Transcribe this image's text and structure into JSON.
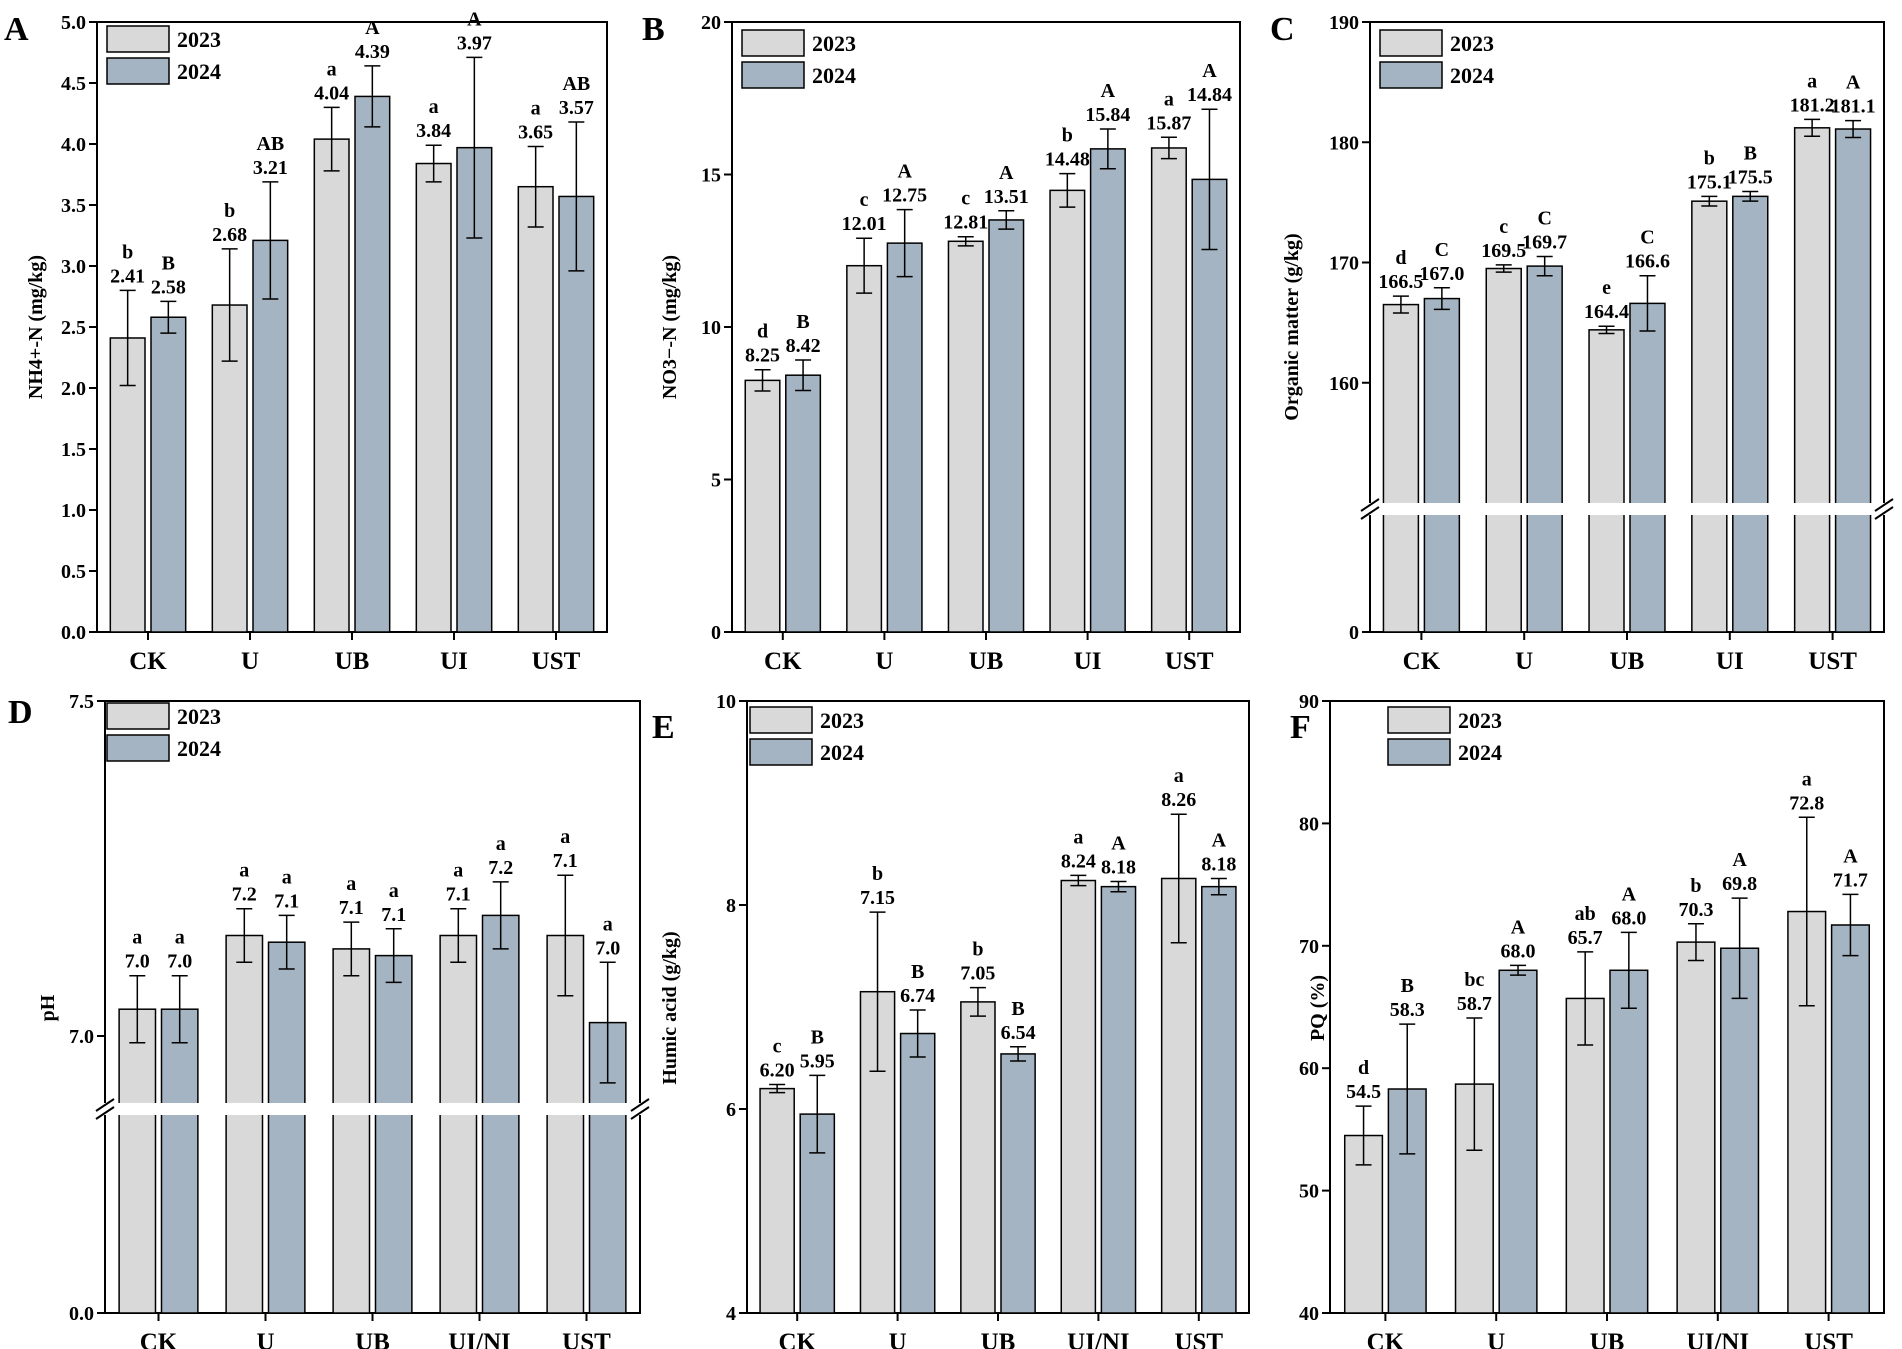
{
  "figure": {
    "colors": {
      "series_2023": "#d9d9d9",
      "series_2024": "#a5b4c2",
      "stroke": "#000000"
    }
  },
  "chart_data": [
    {
      "panel": "A",
      "type": "bar",
      "ylabel": "NH4+-N (mg/kg)",
      "ylim": [
        0,
        5.0
      ],
      "yticks": [
        "0.0",
        "0.5",
        "1.0",
        "1.5",
        "2.0",
        "2.5",
        "3.0",
        "3.5",
        "4.0",
        "4.5",
        "5.0"
      ],
      "ytick_values": [
        0,
        0.5,
        1,
        1.5,
        2,
        2.5,
        3,
        3.5,
        4,
        4.5,
        5
      ],
      "categories": [
        "CK",
        "U",
        "UB",
        "UI",
        "UST"
      ],
      "legend": [
        "2023",
        "2024"
      ],
      "series": [
        {
          "name": "2023",
          "values": [
            2.41,
            2.68,
            4.04,
            3.84,
            3.65
          ],
          "errors": [
            0.39,
            0.46,
            0.26,
            0.15,
            0.33
          ],
          "labels": [
            "2.41",
            "2.68",
            "4.04",
            "3.84",
            "3.65"
          ],
          "letters": [
            "b",
            "b",
            "a",
            "a",
            "a"
          ]
        },
        {
          "name": "2024",
          "values": [
            2.58,
            3.21,
            4.39,
            3.97,
            3.57
          ],
          "errors": [
            0.13,
            0.48,
            0.25,
            0.74,
            0.61
          ],
          "labels": [
            "2.58",
            "3.21",
            "4.39",
            "3.97",
            "3.57"
          ],
          "letters": [
            "B",
            "AB",
            "A",
            "A",
            "AB"
          ]
        }
      ]
    },
    {
      "panel": "B",
      "type": "bar",
      "ylabel": "NO3−-N (mg/kg)",
      "ylim": [
        0,
        20
      ],
      "yticks": [
        "0",
        "5",
        "10",
        "15",
        "20"
      ],
      "ytick_values": [
        0,
        5,
        10,
        15,
        20
      ],
      "categories": [
        "CK",
        "U",
        "UB",
        "UI",
        "UST"
      ],
      "legend": [
        "2023",
        "2024"
      ],
      "series": [
        {
          "name": "2023",
          "values": [
            8.25,
            12.01,
            12.81,
            14.48,
            15.87
          ],
          "errors": [
            0.35,
            0.9,
            0.15,
            0.55,
            0.35
          ],
          "labels": [
            "8.25",
            "12.01",
            "12.81",
            "14.48",
            "15.87"
          ],
          "letters": [
            "d",
            "c",
            "c",
            "b",
            "a"
          ]
        },
        {
          "name": "2024",
          "values": [
            8.42,
            12.75,
            13.51,
            15.84,
            14.84
          ],
          "errors": [
            0.5,
            1.1,
            0.3,
            0.65,
            2.3
          ],
          "labels": [
            "8.42",
            "12.75",
            "13.51",
            "15.84",
            "14.84"
          ],
          "letters": [
            "B",
            "A",
            "A",
            "A",
            "A"
          ]
        }
      ]
    },
    {
      "panel": "C",
      "type": "bar",
      "ylabel": "Organic matter (g/kg)",
      "ylim": [
        150,
        190
      ],
      "axis_break": true,
      "yticks": [
        "0",
        "160",
        "170",
        "180",
        "190"
      ],
      "ytick_values": [
        0,
        160,
        170,
        180,
        190
      ],
      "categories": [
        "CK",
        "U",
        "UB",
        "UI",
        "UST"
      ],
      "legend": [
        "2023",
        "2024"
      ],
      "series": [
        {
          "name": "2023",
          "values": [
            166.5,
            169.5,
            164.4,
            175.1,
            181.2
          ],
          "errors": [
            0.7,
            0.3,
            0.3,
            0.4,
            0.7
          ],
          "labels": [
            "166.5",
            "169.5",
            "164.4",
            "175.1",
            "181.2"
          ],
          "letters": [
            "d",
            "c",
            "e",
            "b",
            "a"
          ]
        },
        {
          "name": "2024",
          "values": [
            167.0,
            169.7,
            166.6,
            175.5,
            181.1
          ],
          "errors": [
            0.9,
            0.8,
            2.3,
            0.4,
            0.7
          ],
          "labels": [
            "167.0",
            "169.7",
            "166.6",
            "175.5",
            "181.1"
          ],
          "letters": [
            "C",
            "C",
            "C",
            "B",
            "A"
          ]
        }
      ]
    },
    {
      "panel": "D",
      "type": "bar",
      "ylabel": "pH",
      "ylim": [
        6.9,
        7.5
      ],
      "axis_break": true,
      "yticks": [
        "0.0",
        "7.0",
        "7.5"
      ],
      "ytick_values": [
        0,
        7.0,
        7.5
      ],
      "categories": [
        "CK",
        "U",
        "UB",
        "UI/NI",
        "UST"
      ],
      "legend": [
        "2023",
        "2024"
      ],
      "series": [
        {
          "name": "2023",
          "values": [
            7.04,
            7.15,
            7.13,
            7.15,
            7.15
          ],
          "errors": [
            0.05,
            0.04,
            0.04,
            0.04,
            0.09
          ],
          "labels": [
            "7.0",
            "7.2",
            "7.1",
            "7.1",
            "7.1"
          ],
          "letters": [
            "a",
            "a",
            "a",
            "a",
            "a"
          ]
        },
        {
          "name": "2024",
          "values": [
            7.04,
            7.14,
            7.12,
            7.18,
            7.02
          ],
          "errors": [
            0.05,
            0.04,
            0.04,
            0.05,
            0.09
          ],
          "labels": [
            "7.0",
            "7.1",
            "7.1",
            "7.2",
            "7.0"
          ],
          "letters": [
            "a",
            "a",
            "a",
            "a",
            "a"
          ]
        }
      ]
    },
    {
      "panel": "E",
      "type": "bar",
      "ylabel": "Humic acid (g/kg)",
      "ylim": [
        4,
        10
      ],
      "yticks": [
        "4",
        "6",
        "8",
        "10"
      ],
      "ytick_values": [
        4,
        6,
        8,
        10
      ],
      "categories": [
        "CK",
        "U",
        "UB",
        "UI/NI",
        "UST"
      ],
      "legend": [
        "2023",
        "2024"
      ],
      "series": [
        {
          "name": "2023",
          "values": [
            6.2,
            7.15,
            7.05,
            8.24,
            8.26
          ],
          "errors": [
            0.04,
            0.78,
            0.14,
            0.05,
            0.63
          ],
          "labels": [
            "6.20",
            "7.15",
            "7.05",
            "8.24",
            "8.26"
          ],
          "letters": [
            "c",
            "b",
            "b",
            "a",
            "a"
          ]
        },
        {
          "name": "2024",
          "values": [
            5.95,
            6.74,
            6.54,
            8.18,
            8.18
          ],
          "errors": [
            0.38,
            0.23,
            0.07,
            0.05,
            0.08
          ],
          "labels": [
            "5.95",
            "6.74",
            "6.54",
            "8.18",
            "8.18"
          ],
          "letters": [
            "B",
            "B",
            "B",
            "A",
            "A"
          ]
        }
      ]
    },
    {
      "panel": "F",
      "type": "bar",
      "ylabel": "PQ (%)",
      "ylim": [
        40,
        90
      ],
      "yticks": [
        "40",
        "50",
        "60",
        "70",
        "80",
        "90"
      ],
      "ytick_values": [
        40,
        50,
        60,
        70,
        80,
        90
      ],
      "categories": [
        "CK",
        "U",
        "UB",
        "UI/NI",
        "UST"
      ],
      "legend": [
        "2023",
        "2024"
      ],
      "series": [
        {
          "name": "2023",
          "values": [
            54.5,
            58.7,
            65.7,
            70.3,
            72.8
          ],
          "errors": [
            2.4,
            5.4,
            3.8,
            1.5,
            7.7
          ],
          "labels": [
            "54.5",
            "58.7",
            "65.7",
            "70.3",
            "72.8"
          ],
          "letters": [
            "d",
            "bc",
            "ab",
            "b",
            "a"
          ]
        },
        {
          "name": "2024",
          "values": [
            58.3,
            68.0,
            68.0,
            69.8,
            71.7
          ],
          "errors": [
            5.3,
            0.4,
            3.1,
            4.1,
            2.5
          ],
          "labels": [
            "58.3",
            "68.0",
            "68.0",
            "69.8",
            "71.7"
          ],
          "letters": [
            "B",
            "A",
            "A",
            "A",
            "A"
          ]
        }
      ]
    }
  ]
}
